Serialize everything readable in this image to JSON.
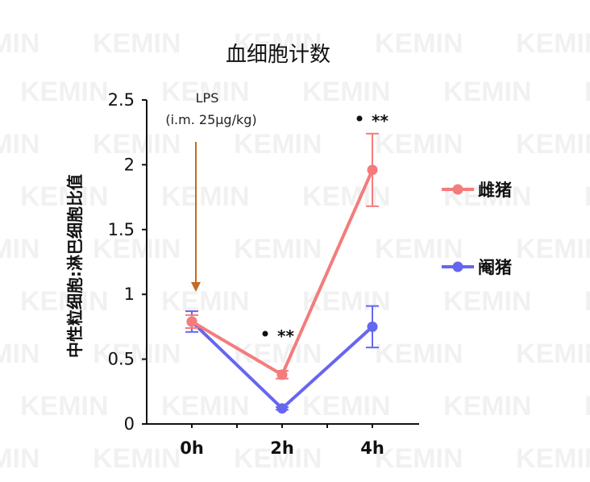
{
  "watermark": "KEMIN",
  "chart_data": {
    "type": "line",
    "title": "血细胞计数",
    "ylabel": "中性粒细胞:淋巴细胞比值",
    "xlabel": "",
    "categories": [
      "0h",
      "2h",
      "4h"
    ],
    "ylim": [
      0,
      2.5
    ],
    "yticks": [
      "0",
      "0.5",
      "1",
      "1.5",
      "2",
      "2.5"
    ],
    "grid": false,
    "legend_position": "right",
    "series": [
      {
        "name": "雌猪",
        "color": "#f47c7c",
        "values": [
          0.79,
          0.38,
          1.96
        ],
        "errors": [
          0.05,
          0.03,
          0.28
        ]
      },
      {
        "name": "阉猪",
        "color": "#6666f0",
        "values": [
          0.79,
          0.12,
          0.75
        ],
        "errors": [
          0.08,
          0.01,
          0.16
        ]
      }
    ],
    "annotations": {
      "arrow_label_line1": "LPS",
      "arrow_label_line2": "(i.m. 25μg/kg)",
      "arrow_color": "#c46a22",
      "sig_2h": "**",
      "sig_4h": "**"
    }
  }
}
